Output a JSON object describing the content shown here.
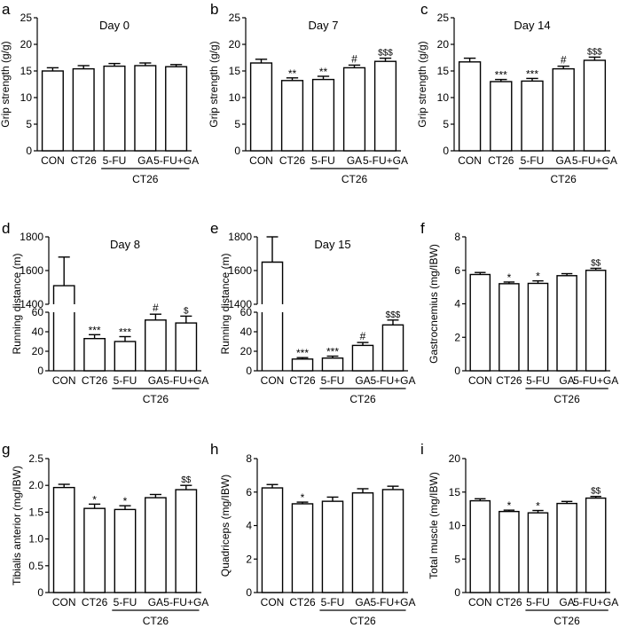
{
  "figure": {
    "background": "#ffffff",
    "bar_fill": "#ffffff",
    "bar_stroke": "#000000"
  },
  "chart_data": [
    {
      "panel": "a",
      "type": "bar",
      "title": "Day 0",
      "ylabel": "Grip strength (g/g)",
      "ylim": [
        0,
        25
      ],
      "yticks": [
        "0",
        "5",
        "10",
        "15",
        "20",
        "25"
      ],
      "categories": [
        "CON",
        "CT26",
        "5-FU",
        "GA",
        "5-FU+GA"
      ],
      "values": [
        15.0,
        15.4,
        15.9,
        16.0,
        15.8
      ],
      "errors": [
        0.6,
        0.6,
        0.5,
        0.5,
        0.4
      ],
      "annotations": [
        "",
        "",
        "",
        "",
        ""
      ],
      "group_label": "CT26"
    },
    {
      "panel": "b",
      "type": "bar",
      "title": "Day 7",
      "ylabel": "Grip strength (g/g)",
      "ylim": [
        0,
        25
      ],
      "yticks": [
        "0",
        "5",
        "10",
        "15",
        "20",
        "25"
      ],
      "categories": [
        "CON",
        "CT26",
        "5-FU",
        "GA",
        "5-FU+GA"
      ],
      "values": [
        16.5,
        13.2,
        13.4,
        15.6,
        16.8
      ],
      "errors": [
        0.7,
        0.5,
        0.6,
        0.5,
        0.6
      ],
      "annotations": [
        "",
        "**",
        "**",
        "#",
        "$$$"
      ],
      "group_label": "CT26"
    },
    {
      "panel": "c",
      "type": "bar",
      "title": "Day 14",
      "ylabel": "Grip strength (g/g)",
      "ylim": [
        0,
        25
      ],
      "yticks": [
        "0",
        "5",
        "10",
        "15",
        "20",
        "25"
      ],
      "categories": [
        "CON",
        "CT26",
        "5-FU",
        "GA",
        "5-FU+GA"
      ],
      "values": [
        16.7,
        13.0,
        13.1,
        15.4,
        17.0
      ],
      "errors": [
        0.7,
        0.4,
        0.5,
        0.5,
        0.6
      ],
      "annotations": [
        "",
        "***",
        "***",
        "#",
        "$$$"
      ],
      "group_label": "CT26"
    },
    {
      "panel": "d",
      "type": "bar",
      "title": "Day 8",
      "ylabel": "Running distance (m)",
      "broken_axis": {
        "lower": [
          0,
          60
        ],
        "upper": [
          1400,
          1800
        ],
        "lower_ticks": [
          "0",
          "20",
          "40",
          "60"
        ],
        "upper_ticks": [
          "1400",
          "1600",
          "1800"
        ]
      },
      "categories": [
        "CON",
        "CT26",
        "5-FU",
        "GA",
        "5-FU+GA"
      ],
      "values": [
        1510,
        33,
        30,
        52,
        49
      ],
      "errors": [
        170,
        4,
        5,
        6,
        7
      ],
      "annotations": [
        "",
        "***",
        "***",
        "#",
        "$"
      ],
      "group_label": "CT26"
    },
    {
      "panel": "e",
      "type": "bar",
      "title": "Day 15",
      "ylabel": "Running distance (m)",
      "broken_axis": {
        "lower": [
          0,
          60
        ],
        "upper": [
          1400,
          1800
        ],
        "lower_ticks": [
          "0",
          "20",
          "40",
          "60"
        ],
        "upper_ticks": [
          "1400",
          "1600",
          "1800"
        ]
      },
      "categories": [
        "CON",
        "CT26",
        "5-FU",
        "GA",
        "5-FU+GA"
      ],
      "values": [
        1650,
        12,
        13,
        26,
        47
      ],
      "errors": [
        150,
        1.5,
        2,
        3,
        5
      ],
      "annotations": [
        "",
        "***",
        "***",
        "#",
        "$$$"
      ],
      "group_label": "CT26"
    },
    {
      "panel": "f",
      "type": "bar",
      "title": "",
      "ylabel": "Gastrocnemius (mg/IBW)",
      "ylim": [
        0,
        8
      ],
      "yticks": [
        "0",
        "2",
        "4",
        "6",
        "8"
      ],
      "categories": [
        "CON",
        "CT26",
        "5-FU",
        "GA",
        "5-FU+GA"
      ],
      "values": [
        5.75,
        5.2,
        5.22,
        5.68,
        6.0
      ],
      "errors": [
        0.12,
        0.1,
        0.15,
        0.12,
        0.12
      ],
      "annotations": [
        "",
        "*",
        "*",
        "",
        "$$"
      ],
      "group_label": "CT26"
    },
    {
      "panel": "g",
      "type": "bar",
      "title": "",
      "ylabel": "Tibialis anterior (mg/IBW)",
      "ylim": [
        0,
        2.5
      ],
      "yticks": [
        "0",
        "0.5",
        "1.0",
        "1.5",
        "2.0",
        "2.5"
      ],
      "categories": [
        "CON",
        "CT26",
        "5-FU",
        "GA",
        "5-FU+GA"
      ],
      "values": [
        1.96,
        1.57,
        1.55,
        1.77,
        1.92
      ],
      "errors": [
        0.06,
        0.08,
        0.07,
        0.06,
        0.08
      ],
      "annotations": [
        "",
        "*",
        "*",
        "",
        "$$"
      ],
      "group_label": "CT26"
    },
    {
      "panel": "h",
      "type": "bar",
      "title": "",
      "ylabel": "Quadriceps (mg/IBW)",
      "ylim": [
        0,
        8
      ],
      "yticks": [
        "0",
        "2",
        "4",
        "6",
        "8"
      ],
      "categories": [
        "CON",
        "CT26",
        "5-FU",
        "GA",
        "5-FU+GA"
      ],
      "values": [
        6.25,
        5.3,
        5.45,
        5.95,
        6.15
      ],
      "errors": [
        0.2,
        0.1,
        0.25,
        0.25,
        0.2
      ],
      "annotations": [
        "",
        "*",
        "",
        "",
        ""
      ],
      "group_label": "CT26"
    },
    {
      "panel": "i",
      "type": "bar",
      "title": "",
      "ylabel": "Total muscle (mg/IBW)",
      "ylim": [
        0,
        20
      ],
      "yticks": [
        "0",
        "5",
        "10",
        "15",
        "20"
      ],
      "categories": [
        "CON",
        "CT26",
        "5-FU",
        "GA",
        "5-FU+GA"
      ],
      "values": [
        13.7,
        12.1,
        11.9,
        13.3,
        14.1
      ],
      "errors": [
        0.3,
        0.2,
        0.35,
        0.3,
        0.25
      ],
      "annotations": [
        "",
        "*",
        "*",
        "",
        "$$"
      ],
      "group_label": "CT26"
    }
  ]
}
